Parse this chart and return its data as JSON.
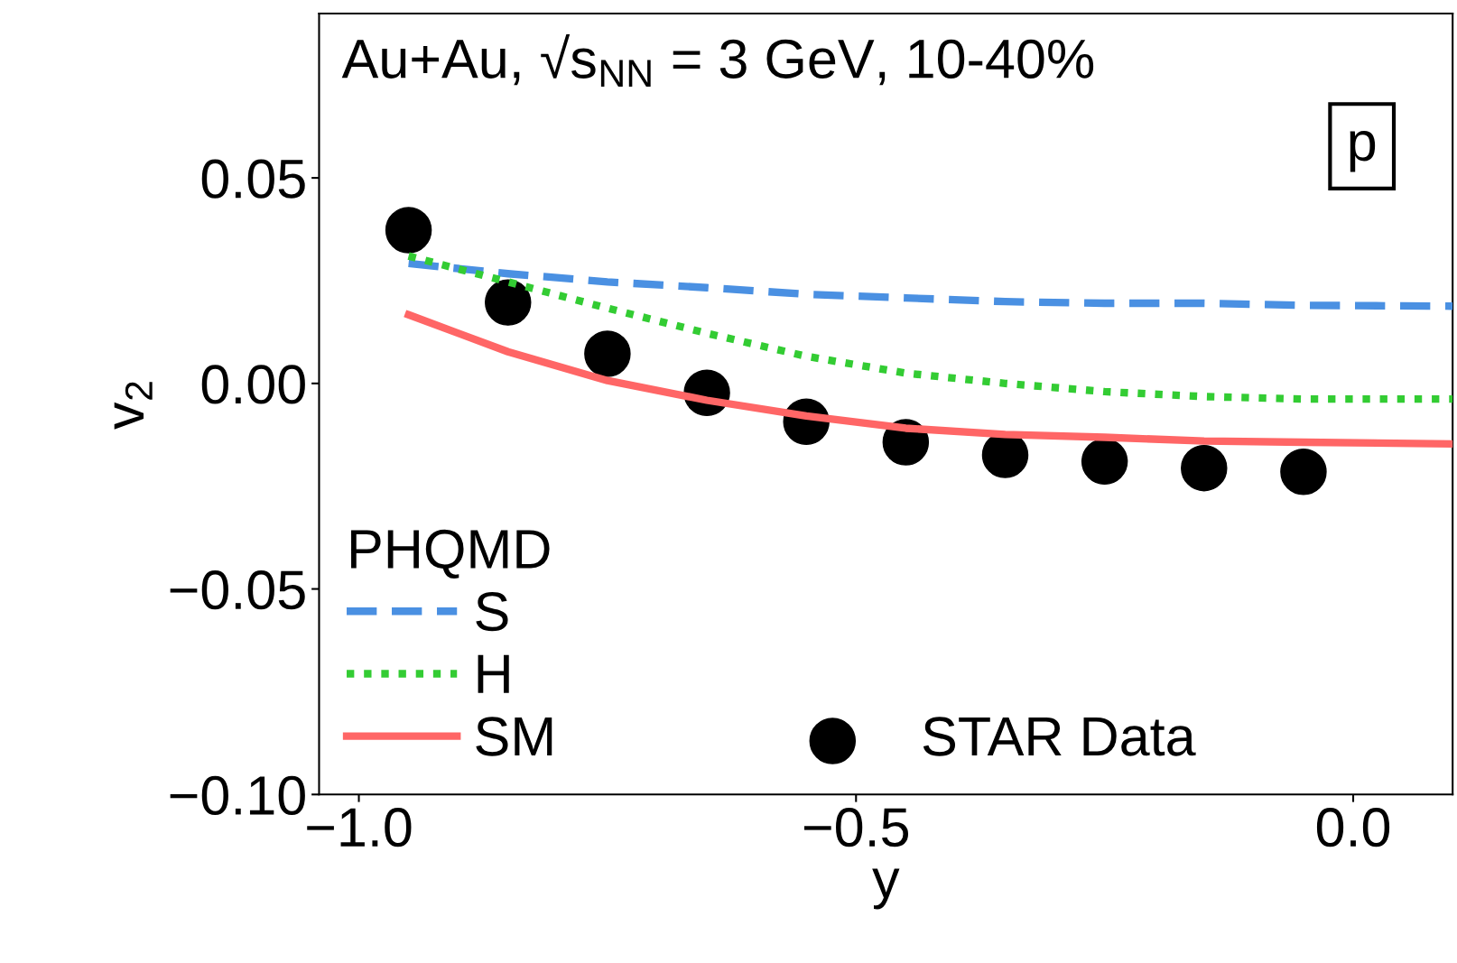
{
  "chart_data": {
    "type": "line",
    "xlabel": "y",
    "ylabel": "v$_{2}$",
    "legend_title": "PHQMD",
    "xlim": [
      -1.04,
      0.1
    ],
    "xticks": [
      {
        "value": -1.0,
        "label": "−1.0"
      },
      {
        "value": -0.5,
        "label": "−0.5"
      },
      {
        "value": 0.0,
        "label": "0.0"
      }
    ],
    "ylim": [
      -0.1,
      0.09
    ],
    "yticks": [
      {
        "value": -0.1,
        "label": "−0.10"
      },
      {
        "value": -0.05,
        "label": "−0.05"
      },
      {
        "value": 0.0,
        "label": "0.00"
      },
      {
        "value": 0.05,
        "label": "0.05"
      }
    ],
    "grid": false,
    "legend": "bottom left",
    "series": [
      {
        "name": "S",
        "color": "#4a90e2",
        "line_style": "dashed",
        "x": [
          -0.95,
          -0.85,
          -0.75,
          -0.65,
          -0.55,
          -0.45,
          -0.35,
          -0.25,
          -0.15,
          -0.05,
          0.1
        ],
        "values": [
          0.0292,
          0.0267,
          0.0247,
          0.0233,
          0.0217,
          0.0208,
          0.0199,
          0.0195,
          0.0195,
          0.019,
          0.0188
        ]
      },
      {
        "name": "H",
        "color": "#33cc33",
        "line_style": "dotted",
        "x": [
          -0.95,
          -0.85,
          -0.75,
          -0.65,
          -0.55,
          -0.45,
          -0.35,
          -0.25,
          -0.15,
          -0.05,
          0.1
        ],
        "values": [
          0.031,
          0.0247,
          0.0183,
          0.0122,
          0.0066,
          0.0025,
          0.0,
          -0.002,
          -0.0032,
          -0.0038,
          -0.0038
        ]
      },
      {
        "name": "SM",
        "color": "#ff6666",
        "line_style": "solid",
        "x": [
          -0.95,
          -0.85,
          -0.75,
          -0.65,
          -0.55,
          -0.45,
          -0.35,
          -0.25,
          -0.15,
          -0.05,
          0.1
        ],
        "values": [
          0.0167,
          0.0077,
          0.0007,
          -0.0041,
          -0.0079,
          -0.0109,
          -0.0124,
          -0.0131,
          -0.014,
          -0.0143,
          -0.0147
        ]
      },
      {
        "name": "STAR Data",
        "type": "scatter",
        "color": "#000000",
        "marker": "circle",
        "x": [
          -0.95,
          -0.85,
          -0.75,
          -0.65,
          -0.55,
          -0.45,
          -0.35,
          -0.25,
          -0.15,
          -0.05
        ],
        "values": [
          0.0373,
          0.0197,
          0.0072,
          -0.0023,
          -0.0093,
          -0.0143,
          -0.0174,
          -0.019,
          -0.0206,
          -0.0215
        ]
      }
    ],
    "annotations": [
      "Au+Au, √s$_{NN}$ = 3 GeV, 10-40%",
      "p"
    ]
  }
}
